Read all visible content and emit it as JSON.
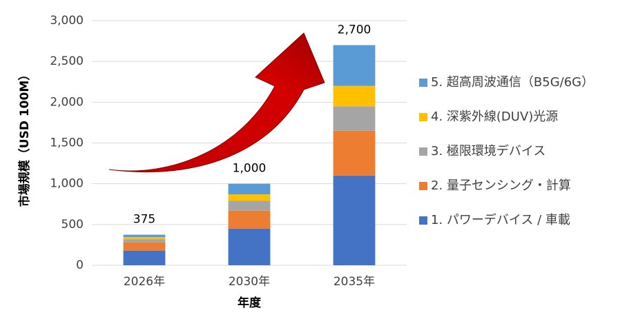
{
  "chart_data": {
    "type": "stacked_bar",
    "ylabel": "市場規模（USD 100M）",
    "xlabel": "年度",
    "categories": [
      "2026年",
      "2030年",
      "2035年"
    ],
    "series": [
      {
        "name": "1. パワーデバイス / 車載",
        "color": "#4472c4",
        "values": [
          180,
          450,
          1100
        ]
      },
      {
        "name": "2. 量子センシング・計算",
        "color": "#ed7d31",
        "values": [
          100,
          220,
          550
        ]
      },
      {
        "name": "3. 極限環境デバイス",
        "color": "#a5a5a5",
        "values": [
          40,
          120,
          300
        ]
      },
      {
        "name": "4. 深紫外線(DUV)光源",
        "color": "#ffc000",
        "values": [
          25,
          80,
          250
        ]
      },
      {
        "name": "5. 超高周波通信（B5G/6G）",
        "color": "#5b9bd5",
        "values": [
          30,
          130,
          500
        ]
      }
    ],
    "totals": [
      375,
      1000,
      2700
    ],
    "total_labels": [
      "375",
      "1,000",
      "2,700"
    ],
    "ylim": [
      0,
      3000
    ],
    "yticks": [
      0,
      500,
      {
        "value": 1000,
        "label": "1,000"
      },
      {
        "value": 1500,
        "label": "1,500"
      },
      {
        "value": 2000,
        "label": "2,000"
      },
      {
        "value": 2500,
        "label": "2,500"
      },
      {
        "value": 3000,
        "label": "3,000"
      }
    ],
    "grid": true,
    "legend": "right"
  }
}
